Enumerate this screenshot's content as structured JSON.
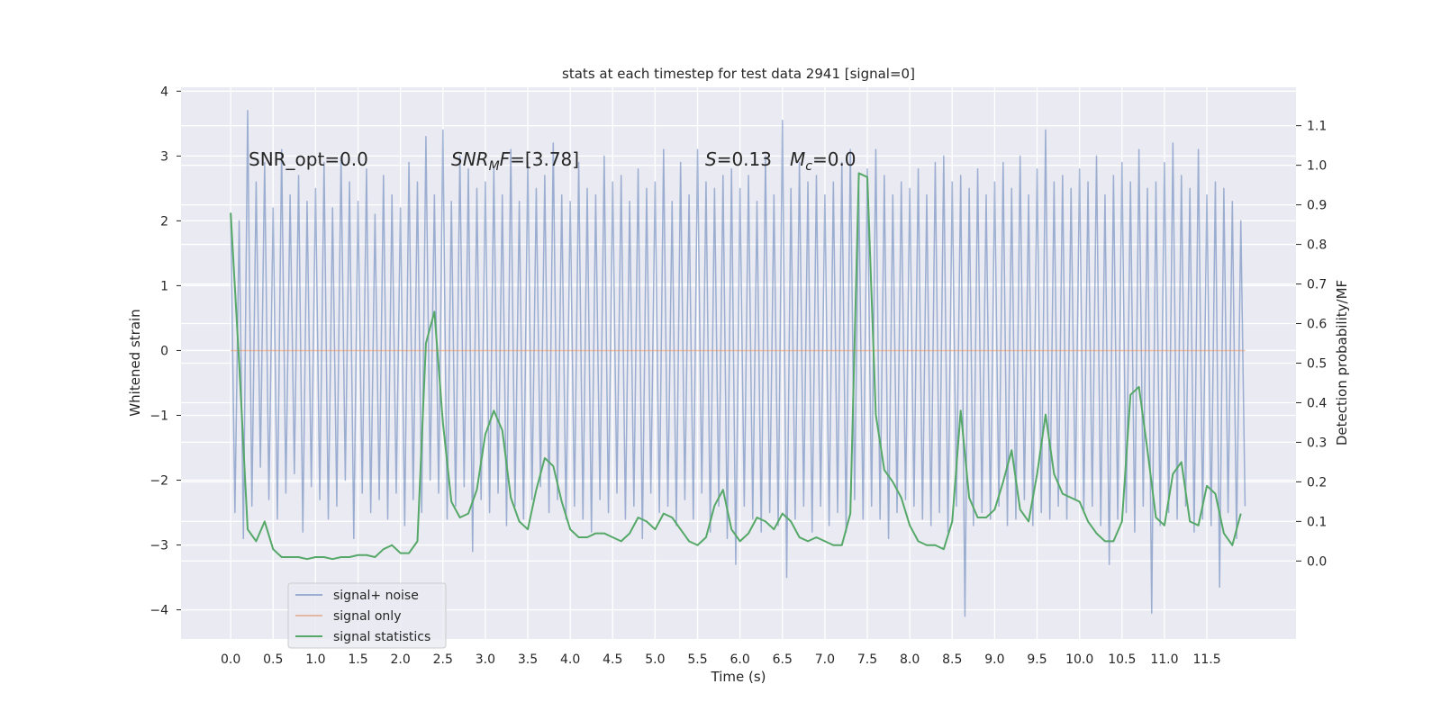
{
  "chart_data": {
    "type": "line",
    "title": "stats at each timestep for test data 2941 [signal=0]",
    "xlabel": "Time (s)",
    "ylabel": "Whitened strain",
    "y2label": "Detection probability/MF",
    "xlim": [
      -0.585,
      12.55
    ],
    "ylim": [
      -4.45,
      4.06
    ],
    "y2lim": [
      -0.197,
      1.197
    ],
    "xticks": [
      {
        "value": 0,
        "label": "0.0"
      },
      0.5,
      {
        "value": 1,
        "label": "1.0"
      },
      1.5,
      {
        "value": 2,
        "label": "2.0"
      },
      2.5,
      {
        "value": 3,
        "label": "3.0"
      },
      3.5,
      {
        "value": 4,
        "label": "4.0"
      },
      4.5,
      {
        "value": 5,
        "label": "5.0"
      },
      5.5,
      {
        "value": 6,
        "label": "6.0"
      },
      6.5,
      {
        "value": 7,
        "label": "7.0"
      },
      7.5,
      {
        "value": 8,
        "label": "8.0"
      },
      8.5,
      {
        "value": 9,
        "label": "9.0"
      },
      9.5,
      {
        "value": 10,
        "label": "10.0"
      },
      10.5,
      {
        "value": 11,
        "label": "11.0"
      },
      11.5
    ],
    "yticks": [
      {
        "value": -4,
        "label": "−4"
      },
      {
        "value": -3,
        "label": "−3"
      },
      {
        "value": -2,
        "label": "−2"
      },
      {
        "value": -1,
        "label": "−1"
      },
      0,
      1,
      2,
      3,
      4
    ],
    "y2ticks": [
      {
        "value": 0,
        "label": "0.0"
      },
      0.1,
      0.2,
      0.3,
      0.4,
      0.5,
      0.6,
      0.7,
      0.8,
      0.9,
      {
        "value": 1,
        "label": "1.0"
      },
      1.1
    ],
    "grid": true,
    "legend": "lower left",
    "annotations": [
      {
        "text": "SNR_opt=0.0"
      },
      {
        "parts": [
          "SNR",
          "M",
          "F",
          "=[3.78]"
        ]
      },
      {
        "parts": [
          "S",
          "=0.13"
        ]
      },
      {
        "parts": [
          "M",
          "c",
          "=0.0"
        ]
      }
    ],
    "series": [
      {
        "name": "signal+ noise",
        "color": "#4c72b0",
        "opacity": 0.5,
        "x": [
          0,
          0.05,
          0.1,
          0.15,
          0.2,
          0.25,
          0.3,
          0.35,
          0.4,
          0.45,
          0.5,
          0.55,
          0.6,
          0.65,
          0.7,
          0.75,
          0.8,
          0.85,
          0.9,
          0.95,
          1,
          1.05,
          1.1,
          1.15,
          1.2,
          1.25,
          1.3,
          1.35,
          1.4,
          1.45,
          1.5,
          1.55,
          1.6,
          1.65,
          1.7,
          1.75,
          1.8,
          1.85,
          1.9,
          1.95,
          2,
          2.05,
          2.1,
          2.15,
          2.2,
          2.25,
          2.3,
          2.35,
          2.4,
          2.45,
          2.5,
          2.55,
          2.6,
          2.65,
          2.7,
          2.75,
          2.8,
          2.85,
          2.9,
          2.95,
          3,
          3.05,
          3.1,
          3.15,
          3.2,
          3.25,
          3.3,
          3.35,
          3.4,
          3.45,
          3.5,
          3.55,
          3.6,
          3.65,
          3.7,
          3.75,
          3.8,
          3.85,
          3.9,
          3.95,
          4,
          4.05,
          4.1,
          4.15,
          4.2,
          4.25,
          4.3,
          4.35,
          4.4,
          4.45,
          4.5,
          4.55,
          4.6,
          4.65,
          4.7,
          4.75,
          4.8,
          4.85,
          4.9,
          4.95,
          5,
          5.05,
          5.1,
          5.15,
          5.2,
          5.25,
          5.3,
          5.35,
          5.4,
          5.45,
          5.5,
          5.55,
          5.6,
          5.65,
          5.7,
          5.75,
          5.8,
          5.85,
          5.9,
          5.95,
          6,
          6.05,
          6.1,
          6.15,
          6.2,
          6.25,
          6.3,
          6.35,
          6.4,
          6.45,
          6.5,
          6.55,
          6.6,
          6.65,
          6.7,
          6.75,
          6.8,
          6.85,
          6.9,
          6.95,
          7,
          7.05,
          7.1,
          7.15,
          7.2,
          7.25,
          7.3,
          7.35,
          7.4,
          7.45,
          7.5,
          7.55,
          7.6,
          7.65,
          7.7,
          7.75,
          7.8,
          7.85,
          7.9,
          7.95,
          8,
          8.05,
          8.1,
          8.15,
          8.2,
          8.25,
          8.3,
          8.35,
          8.4,
          8.45,
          8.5,
          8.55,
          8.6,
          8.65,
          8.7,
          8.75,
          8.8,
          8.85,
          8.9,
          8.95,
          9,
          9.05,
          9.1,
          9.15,
          9.2,
          9.25,
          9.3,
          9.35,
          9.4,
          9.45,
          9.5,
          9.55,
          9.6,
          9.65,
          9.7,
          9.75,
          9.8,
          9.85,
          9.9,
          9.95,
          10,
          10.05,
          10.1,
          10.15,
          10.2,
          10.25,
          10.3,
          10.35,
          10.4,
          10.45,
          10.5,
          10.55,
          10.6,
          10.65,
          10.7,
          10.75,
          10.8,
          10.85,
          10.9,
          10.95,
          11,
          11.05,
          11.1,
          11.15,
          11.2,
          11.25,
          11.3,
          11.35,
          11.4,
          11.45,
          11.5,
          11.55,
          11.6,
          11.65,
          11.7,
          11.75,
          11.8,
          11.85,
          11.9,
          11.95
        ],
        "values": [
          2.1,
          -2.5,
          2.0,
          -2.9,
          3.7,
          -2.4,
          2.6,
          -1.8,
          2.9,
          -2.3,
          2.2,
          -2.6,
          3.1,
          -2.2,
          2.4,
          -1.9,
          2.7,
          -2.8,
          2.3,
          -2.1,
          2.5,
          -2.3,
          2.9,
          -2.6,
          2.2,
          -2.4,
          3.0,
          -2.0,
          2.6,
          -2.9,
          2.3,
          -2.2,
          2.8,
          -2.5,
          2.1,
          -2.3,
          2.7,
          -2.6,
          2.4,
          -2.2,
          2.2,
          -2.7,
          2.9,
          -2.3,
          2.6,
          -2.5,
          3.3,
          -2.0,
          2.4,
          -2.2,
          3.4,
          -2.6,
          2.3,
          -2.4,
          3.0,
          -2.1,
          2.8,
          -3.1,
          2.5,
          -2.3,
          2.6,
          -2.5,
          2.8,
          -2.2,
          2.4,
          -2.7,
          3.1,
          -2.4,
          2.3,
          -2.6,
          2.9,
          -2.3,
          2.5,
          -2.1,
          2.7,
          -2.5,
          3.2,
          -2.3,
          2.4,
          -2.6,
          2.3,
          -2.4,
          2.9,
          -2.6,
          2.5,
          -2.8,
          2.4,
          -2.3,
          3.0,
          -2.5,
          2.6,
          -2.2,
          2.7,
          -2.6,
          2.3,
          -2.4,
          2.8,
          -2.9,
          2.5,
          -2.2,
          2.6,
          -2.5,
          3.1,
          -2.4,
          2.3,
          -2.7,
          2.9,
          -2.3,
          2.4,
          -2.6,
          3.1,
          -2.2,
          2.6,
          -2.8,
          2.5,
          -2.4,
          2.7,
          -2.9,
          2.8,
          -3.3,
          2.5,
          -2.4,
          2.7,
          -2.6,
          2.3,
          -2.8,
          3.0,
          -2.5,
          2.4,
          -2.7,
          3.55,
          -3.5,
          2.5,
          -2.6,
          2.9,
          -2.4,
          2.6,
          -2.8,
          2.7,
          -2.4,
          2.4,
          -2.7,
          2.6,
          -2.5,
          2.9,
          -2.8,
          3.1,
          -2.3,
          2.5,
          -2.6,
          2.8,
          -2.4,
          3.1,
          -2.6,
          2.7,
          -2.9,
          2.4,
          -2.5,
          2.6,
          -2.3,
          2.5,
          -2.4,
          2.8,
          -2.6,
          2.4,
          -2.7,
          2.9,
          -2.5,
          3.0,
          -2.8,
          2.6,
          -2.4,
          2.7,
          -4.1,
          2.5,
          -2.7,
          2.8,
          -2.5,
          2.4,
          -2.6,
          2.6,
          -2.4,
          2.9,
          -2.7,
          2.5,
          -2.6,
          3.0,
          -2.3,
          2.4,
          -2.7,
          2.8,
          -2.5,
          3.4,
          -2.6,
          2.6,
          -2.4,
          2.7,
          -2.6,
          2.5,
          -2.3,
          2.8,
          -2.5,
          2.6,
          -2.4,
          3.0,
          -2.7,
          2.4,
          -3.3,
          2.7,
          -2.6,
          2.9,
          -2.5,
          2.6,
          -2.8,
          3.1,
          -2.4,
          2.5,
          -4.05,
          2.6,
          -2.7,
          2.9,
          -2.5,
          3.2,
          -2.6,
          2.7,
          -2.4,
          2.5,
          -2.8,
          3.1,
          -2.6,
          2.4,
          -2.7,
          2.6,
          -3.65,
          2.5,
          -2.5,
          2.3,
          -2.9,
          2.0,
          -2.4
        ]
      },
      {
        "name": "signal only",
        "color": "#dd8452",
        "opacity": 0.5,
        "x": [
          0,
          11.95
        ],
        "values": [
          0,
          0
        ]
      },
      {
        "name": "signal statistics",
        "color": "#55a868",
        "axis": "y2",
        "x": [
          0,
          0.1,
          0.2,
          0.3,
          0.4,
          0.5,
          0.6,
          0.7,
          0.8,
          0.9,
          1,
          1.1,
          1.2,
          1.3,
          1.4,
          1.5,
          1.6,
          1.7,
          1.8,
          1.9,
          2,
          2.1,
          2.2,
          2.3,
          2.4,
          2.5,
          2.6,
          2.7,
          2.8,
          2.9,
          3,
          3.1,
          3.2,
          3.3,
          3.4,
          3.5,
          3.6,
          3.7,
          3.8,
          3.9,
          4,
          4.1,
          4.2,
          4.3,
          4.4,
          4.5,
          4.6,
          4.7,
          4.8,
          4.9,
          5,
          5.1,
          5.2,
          5.3,
          5.4,
          5.5,
          5.6,
          5.7,
          5.8,
          5.9,
          6,
          6.1,
          6.2,
          6.3,
          6.4,
          6.5,
          6.6,
          6.7,
          6.8,
          6.9,
          7,
          7.1,
          7.2,
          7.3,
          7.4,
          7.5,
          7.6,
          7.7,
          7.8,
          7.9,
          8,
          8.1,
          8.2,
          8.3,
          8.4,
          8.5,
          8.6,
          8.7,
          8.8,
          8.9,
          9,
          9.1,
          9.2,
          9.3,
          9.4,
          9.5,
          9.6,
          9.7,
          9.8,
          9.9,
          10,
          10.1,
          10.2,
          10.3,
          10.4,
          10.5,
          10.6,
          10.7,
          10.8,
          10.9,
          11,
          11.1,
          11.2,
          11.3,
          11.4,
          11.5,
          11.6,
          11.7,
          11.8,
          11.9
        ],
        "values": [
          0.88,
          0.5,
          0.08,
          0.05,
          0.1,
          0.03,
          0.01,
          0.01,
          0.01,
          0.005,
          0.01,
          0.01,
          0.005,
          0.01,
          0.01,
          0.015,
          0.015,
          0.01,
          0.03,
          0.04,
          0.02,
          0.02,
          0.05,
          0.55,
          0.63,
          0.35,
          0.15,
          0.11,
          0.12,
          0.18,
          0.32,
          0.38,
          0.33,
          0.16,
          0.1,
          0.08,
          0.18,
          0.26,
          0.24,
          0.15,
          0.08,
          0.06,
          0.06,
          0.07,
          0.07,
          0.06,
          0.05,
          0.07,
          0.11,
          0.1,
          0.08,
          0.12,
          0.11,
          0.08,
          0.05,
          0.04,
          0.06,
          0.14,
          0.18,
          0.08,
          0.05,
          0.07,
          0.11,
          0.1,
          0.08,
          0.12,
          0.1,
          0.06,
          0.05,
          0.06,
          0.05,
          0.04,
          0.04,
          0.12,
          0.98,
          0.97,
          0.37,
          0.23,
          0.2,
          0.16,
          0.09,
          0.05,
          0.04,
          0.04,
          0.03,
          0.1,
          0.38,
          0.16,
          0.11,
          0.11,
          0.13,
          0.2,
          0.28,
          0.13,
          0.1,
          0.22,
          0.37,
          0.22,
          0.17,
          0.16,
          0.15,
          0.1,
          0.07,
          0.05,
          0.05,
          0.1,
          0.42,
          0.44,
          0.28,
          0.11,
          0.09,
          0.22,
          0.25,
          0.1,
          0.09,
          0.19,
          0.17,
          0.07,
          0.04,
          0.12
        ]
      }
    ]
  }
}
